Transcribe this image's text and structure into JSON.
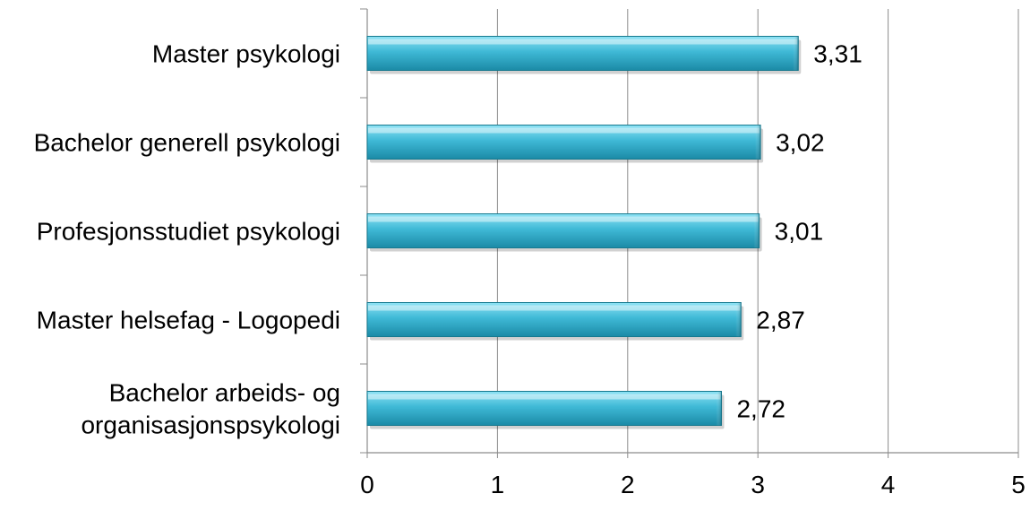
{
  "chart_data": {
    "type": "bar",
    "orientation": "horizontal",
    "categories": [
      "Master psykologi",
      "Bachelor generell psykologi",
      "Profesjonsstudiet psykologi",
      "Master helsefag - Logopedi",
      "Bachelor arbeids- og organisasjonspsykologi"
    ],
    "category_lines": [
      [
        "Master psykologi"
      ],
      [
        "Bachelor generell psykologi"
      ],
      [
        "Profesjonsstudiet psykologi"
      ],
      [
        "Master helsefag - Logopedi"
      ],
      [
        "Bachelor arbeids- og",
        "organisasjonspsykologi"
      ]
    ],
    "values": [
      3.31,
      3.02,
      3.01,
      2.87,
      2.72
    ],
    "data_labels": [
      "3,31",
      "3,02",
      "3,01",
      "2,87",
      "2,72"
    ],
    "xlim": [
      0,
      5
    ],
    "x_ticks": [
      "0",
      "1",
      "2",
      "3",
      "4",
      "5"
    ],
    "title": "",
    "xlabel": "",
    "ylabel": "",
    "grid": "vertical",
    "legend": "none",
    "colors": {
      "bar_light": "#8fe3f5",
      "bar_mid": "#3fb9d6",
      "bar_dark": "#1b8aa6",
      "bar_stroke": "#16798f",
      "gridline": "#8c8c8c",
      "axis": "#8c8c8c"
    }
  }
}
